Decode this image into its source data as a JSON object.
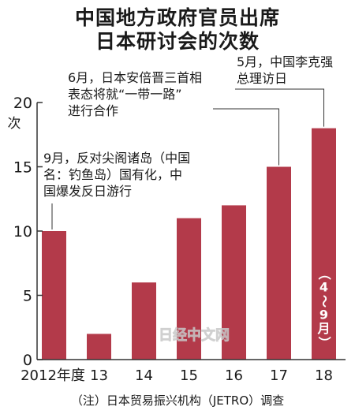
{
  "title_line1": "中国地方政府官员出席",
  "title_line2": "日本研讨会的次数",
  "footnote": "（注）日本贸易振兴机构（JETRO）调查",
  "watermark": "日经中文网",
  "colors": {
    "bar": "#b33a4a",
    "text": "#1a1a1a",
    "axis": "#333333"
  },
  "chart_data": {
    "type": "bar",
    "categories": [
      "2012年度",
      "13",
      "14",
      "15",
      "16",
      "17",
      "18"
    ],
    "values": [
      10,
      2,
      6,
      11,
      12,
      15,
      18
    ],
    "ylim": [
      0,
      20
    ],
    "yticks": [
      0,
      5,
      10,
      15,
      20
    ],
    "ylabel": "次",
    "grid": false,
    "bar_inner_label": {
      "category": "18",
      "text": "（4～9月）"
    },
    "annotations": [
      {
        "category": "2012年度",
        "lines": [
          "9月，反对尖阁诸岛（中国",
          "名：钓鱼岛）国有化，中",
          "国爆发反日游行"
        ]
      },
      {
        "category": "17",
        "lines": [
          "6月，日本安倍晋三首相",
          "表态将就“一带一路”",
          "进行合作"
        ]
      },
      {
        "category": "18",
        "lines": [
          "5月，中国李克强",
          "总理访日"
        ]
      }
    ]
  }
}
